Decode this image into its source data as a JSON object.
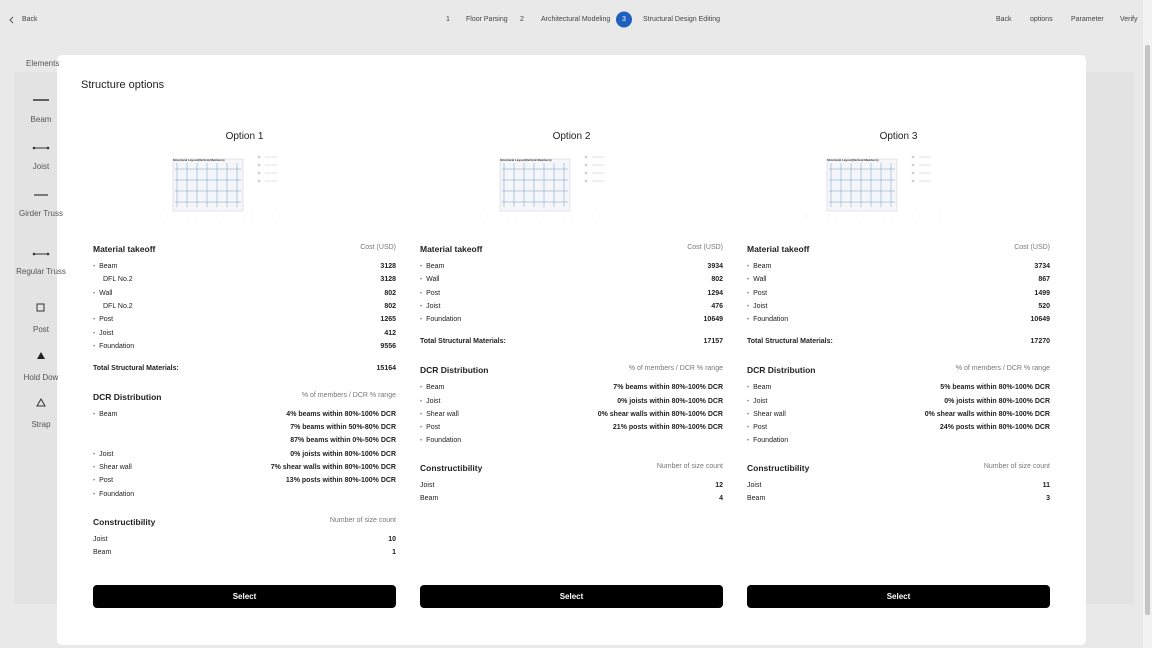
{
  "topbar": {
    "back": "Back",
    "steps": [
      {
        "number": "1",
        "label": "Floor Parsing"
      },
      {
        "number": "2",
        "label": "Architectural Modeling"
      },
      {
        "number": "3",
        "label": "Structural Design Editing"
      }
    ],
    "actions": [
      "Back",
      "options",
      "Parameter",
      "Verify"
    ]
  },
  "sidebar": {
    "title": "Elements",
    "items": [
      "Beam",
      "Joist",
      "Girder Truss",
      "Regular Truss",
      "Post",
      "Hold Dow",
      "Strap"
    ]
  },
  "modal": {
    "title": "Structure options",
    "options": [
      {
        "title": "Option 1",
        "plot_title": "Structural Layout(Vertical Members)",
        "material": {
          "title": "Material takeoff",
          "cost_header": "Cost (USD)",
          "rows": [
            {
              "name": "Beam",
              "value": 3128,
              "children": [
                {
                  "name": "DFL No.2",
                  "value": 3128
                }
              ]
            },
            {
              "name": "Wall",
              "value": 802,
              "children": [
                {
                  "name": "DFL No.2",
                  "value": 802
                }
              ]
            },
            {
              "name": "Post",
              "value": 1265
            },
            {
              "name": "Joist",
              "value": 412
            },
            {
              "name": "Foundation",
              "value": 9556
            }
          ],
          "total_label": "Total Structural Materials:",
          "total": 15164
        },
        "dcr": {
          "title": "DCR Distribution",
          "header": "% of members / DCR % range",
          "rows": [
            {
              "name": "Beam",
              "lines": [
                "4% beams within 80%-100% DCR",
                "7% beams within 50%-80% DCR",
                "87% beams within 0%-50% DCR"
              ]
            },
            {
              "name": "Joist",
              "lines": [
                "0% joists within 80%-100% DCR"
              ]
            },
            {
              "name": "Shear wall",
              "lines": [
                "7% shear walls within 80%-100% DCR"
              ]
            },
            {
              "name": "Post",
              "lines": [
                "13% posts within 80%-100% DCR"
              ]
            },
            {
              "name": "Foundation",
              "lines": []
            }
          ]
        },
        "constructibility": {
          "title": "Constructibility",
          "header": "Number of size count",
          "rows": [
            {
              "name": "Joist",
              "value": 10
            },
            {
              "name": "Beam",
              "value": 1
            }
          ]
        },
        "button": "Select"
      },
      {
        "title": "Option 2",
        "plot_title": "Structural Layout(Vertical Members)",
        "material": {
          "title": "Material takeoff",
          "cost_header": "Cost (USD)",
          "rows": [
            {
              "name": "Beam",
              "value": 3934
            },
            {
              "name": "Wall",
              "value": 802
            },
            {
              "name": "Post",
              "value": 1294
            },
            {
              "name": "Joist",
              "value": 476
            },
            {
              "name": "Foundation",
              "value": 10649
            }
          ],
          "total_label": "Total Structural Materials:",
          "total": 17157
        },
        "dcr": {
          "title": "DCR Distribution",
          "header": "% of members / DCR % range",
          "rows": [
            {
              "name": "Beam",
              "lines": [
                "7% beams within 80%-100% DCR"
              ]
            },
            {
              "name": "Joist",
              "lines": [
                "0% joists within 80%-100% DCR"
              ]
            },
            {
              "name": "Shear wall",
              "lines": [
                "0% shear walls within 80%-100% DCR"
              ]
            },
            {
              "name": "Post",
              "lines": [
                "21% posts within 80%-100% DCR"
              ]
            },
            {
              "name": "Foundation",
              "lines": []
            }
          ]
        },
        "constructibility": {
          "title": "Constructibility",
          "header": "Number of size count",
          "rows": [
            {
              "name": "Joist",
              "value": 12
            },
            {
              "name": "Beam",
              "value": 4
            }
          ]
        },
        "button": "Select"
      },
      {
        "title": "Option 3",
        "plot_title": "Structural Layout(Vertical Members)",
        "material": {
          "title": "Material takeoff",
          "cost_header": "Cost (USD)",
          "rows": [
            {
              "name": "Beam",
              "value": 3734
            },
            {
              "name": "Wall",
              "value": 867
            },
            {
              "name": "Post",
              "value": 1499
            },
            {
              "name": "Joist",
              "value": 520
            },
            {
              "name": "Foundation",
              "value": 10649
            }
          ],
          "total_label": "Total Structural Materials:",
          "total": 17270
        },
        "dcr": {
          "title": "DCR Distribution",
          "header": "% of members / DCR % range",
          "rows": [
            {
              "name": "Beam",
              "lines": [
                "5% beams within 80%-100% DCR"
              ]
            },
            {
              "name": "Joist",
              "lines": [
                "0% joists within 80%-100% DCR"
              ]
            },
            {
              "name": "Shear wall",
              "lines": [
                "0% shear walls within 80%-100% DCR"
              ]
            },
            {
              "name": "Post",
              "lines": [
                "24% posts within 80%-100% DCR"
              ]
            },
            {
              "name": "Foundation",
              "lines": []
            }
          ]
        },
        "constructibility": {
          "title": "Constructibility",
          "header": "Number of size count",
          "rows": [
            {
              "name": "Joist",
              "value": 11
            },
            {
              "name": "Beam",
              "value": 3
            }
          ]
        },
        "button": "Select"
      }
    ]
  }
}
